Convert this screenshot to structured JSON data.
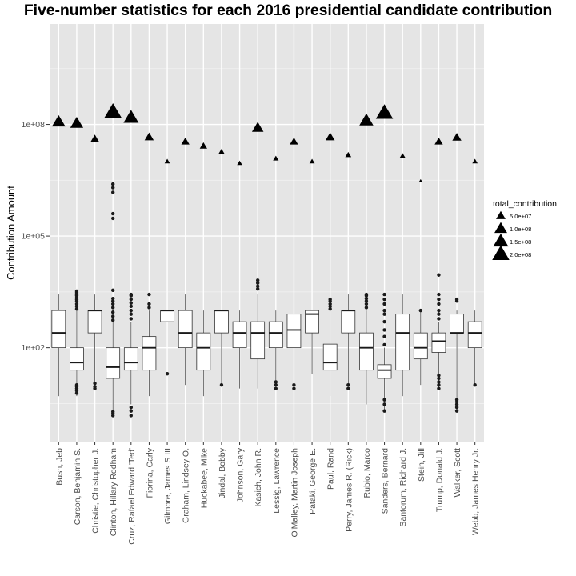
{
  "chart_data": {
    "type": "boxplot",
    "title": "Five-number statistics for each 2016 presidential candidate contribution",
    "xlabel": "",
    "ylabel": "Contribution Amount",
    "y_scale": "log10",
    "ylim": [
      0.3,
      50000000000
    ],
    "y_ticks": [
      {
        "value": 100,
        "label": "1e+02"
      },
      {
        "value": 100000,
        "label": "1e+05"
      },
      {
        "value": 100000000,
        "label": "1e+08"
      }
    ],
    "grid": true,
    "legend_position": "right",
    "legend": {
      "title": "total_contribution",
      "entries": [
        {
          "label": "5.0e+07",
          "value": 50000000
        },
        {
          "label": "1.0e+08",
          "value": 100000000
        },
        {
          "label": "1.5e+08",
          "value": 150000000
        },
        {
          "label": "2.0e+08",
          "value": 200000000
        }
      ]
    },
    "series": [
      {
        "name": "Bush, Jeb",
        "whisker_low": 5,
        "q1": 100,
        "median": 250,
        "q3": 1000,
        "whisker_high": 2700,
        "outliers_low": [],
        "outliers_high": [],
        "total_contribution": 115000000
      },
      {
        "name": "Carson, Benjamin S.",
        "whisker_low": 5,
        "q1": 25,
        "median": 40,
        "q3": 100,
        "whisker_high": 1000,
        "outliers_low": [
          6,
          7,
          8,
          9,
          10
        ],
        "outliers_high": [
          1100,
          1300,
          1500,
          1800,
          2000,
          2200,
          2500,
          2700,
          3000,
          3300
        ],
        "total_contribution": 105000000
      },
      {
        "name": "Christie, Christopher J.",
        "whisker_low": 10,
        "q1": 250,
        "median": 1000,
        "q3": 1000,
        "whisker_high": 2700,
        "outliers_low": [
          8,
          9,
          11
        ],
        "outliers_high": [],
        "total_contribution": 40000000
      },
      {
        "name": "Clinton, Hillary Rodham",
        "whisker_low": 2,
        "q1": 15,
        "median": 30,
        "q3": 100,
        "whisker_high": 500,
        "outliers_low": [
          1.5,
          1.7,
          1.9
        ],
        "outliers_high": [
          550,
          700,
          900,
          1200,
          1500,
          1800,
          2100,
          3500,
          300000,
          400000,
          1500000,
          2000000,
          2500000
        ],
        "total_contribution": 210000000
      },
      {
        "name": "Cruz, Rafael Edward 'Ted'",
        "whisker_low": 3,
        "q1": 25,
        "median": 40,
        "q3": 100,
        "whisker_high": 500,
        "outliers_low": [
          1.5,
          2,
          2.5
        ],
        "outliers_high": [
          600,
          800,
          1000,
          1300,
          1600,
          2000,
          2500,
          2700
        ],
        "total_contribution": 150000000
      },
      {
        "name": "Fiorina, Carly",
        "whisker_low": 5,
        "q1": 25,
        "median": 100,
        "q3": 200,
        "whisker_high": 1000,
        "outliers_low": [],
        "outliers_high": [
          1200,
          1500,
          2700
        ],
        "total_contribution": 45000000
      },
      {
        "name": "Gilmore, James S III",
        "whisker_low": 500,
        "q1": 500,
        "median": 1000,
        "q3": 1000,
        "whisker_high": 1000,
        "outliers_low": [
          20
        ],
        "outliers_high": [],
        "total_contribution": 10000000
      },
      {
        "name": "Graham, Lindsey O.",
        "whisker_low": 10,
        "q1": 100,
        "median": 250,
        "q3": 1000,
        "whisker_high": 2700,
        "outliers_low": [],
        "outliers_high": [],
        "total_contribution": 34000000
      },
      {
        "name": "Huckabee, Mike",
        "whisker_low": 5,
        "q1": 25,
        "median": 100,
        "q3": 250,
        "whisker_high": 1000,
        "outliers_low": [],
        "outliers_high": [],
        "total_contribution": 26000000
      },
      {
        "name": "Jindal, Bobby",
        "whisker_low": 10,
        "q1": 250,
        "median": 1000,
        "q3": 1000,
        "whisker_high": 1000,
        "outliers_low": [
          10
        ],
        "outliers_high": [],
        "total_contribution": 18000000
      },
      {
        "name": "Johnson, Gary",
        "whisker_low": 8,
        "q1": 100,
        "median": 250,
        "q3": 500,
        "whisker_high": 1000,
        "outliers_low": [],
        "outliers_high": [],
        "total_contribution": 9000000
      },
      {
        "name": "Kasich, John R.",
        "whisker_low": 8,
        "q1": 50,
        "median": 250,
        "q3": 500,
        "whisker_high": 2700,
        "outliers_low": [],
        "outliers_high": [
          3800,
          4500,
          5500,
          6500
        ],
        "total_contribution": 80000000
      },
      {
        "name": "Lessig, Lawrence",
        "whisker_low": 10,
        "q1": 100,
        "median": 250,
        "q3": 500,
        "whisker_high": 1000,
        "outliers_low": [
          8,
          10,
          12
        ],
        "outliers_high": [],
        "total_contribution": 12000000
      },
      {
        "name": "O'Malley, Martin Joseph",
        "whisker_low": 10,
        "q1": 100,
        "median": 300,
        "q3": 800,
        "whisker_high": 2700,
        "outliers_low": [
          8,
          10
        ],
        "outliers_high": [],
        "total_contribution": 34000000
      },
      {
        "name": "Pataki, George E.",
        "whisker_low": 20,
        "q1": 250,
        "median": 800,
        "q3": 1000,
        "whisker_high": 1000,
        "outliers_low": [],
        "outliers_high": [],
        "total_contribution": 10000000
      },
      {
        "name": "Paul, Rand",
        "whisker_low": 5,
        "q1": 25,
        "median": 40,
        "q3": 125,
        "whisker_high": 1000,
        "outliers_low": [],
        "outliers_high": [
          1100,
          1300,
          1500,
          1800,
          2000
        ],
        "total_contribution": 45000000
      },
      {
        "name": "Perry, James R. (Rick)",
        "whisker_low": 10,
        "q1": 250,
        "median": 1000,
        "q3": 1000,
        "whisker_high": 2700,
        "outliers_low": [
          8,
          10
        ],
        "outliers_high": [],
        "total_contribution": 15000000
      },
      {
        "name": "Rubio, Marco",
        "whisker_low": 3,
        "q1": 25,
        "median": 100,
        "q3": 250,
        "whisker_high": 1000,
        "outliers_low": [],
        "outliers_high": [
          1200,
          1500,
          1800,
          2100,
          2500,
          2700
        ],
        "total_contribution": 125000000
      },
      {
        "name": "Sanders, Bernard",
        "whisker_low": 2,
        "q1": 15,
        "median": 25,
        "q3": 35,
        "whisker_high": 100,
        "outliers_low": [
          2,
          3,
          4
        ],
        "outliers_high": [
          120,
          200,
          300,
          500,
          800,
          1000,
          1500,
          2000,
          2700
        ],
        "total_contribution": 200000000
      },
      {
        "name": "Santorum, Richard J.",
        "whisker_low": 5,
        "q1": 25,
        "median": 250,
        "q3": 800,
        "whisker_high": 2700,
        "outliers_low": [],
        "outliers_high": [],
        "total_contribution": 14000000
      },
      {
        "name": "Stein, Jill",
        "whisker_low": 10,
        "q1": 50,
        "median": 100,
        "q3": 250,
        "whisker_high": 1000,
        "outliers_low": [],
        "outliers_high": [
          1000
        ],
        "total_contribution": 3000000
      },
      {
        "name": "Trump, Donald J.",
        "whisker_low": 8,
        "q1": 75,
        "median": 150,
        "q3": 250,
        "whisker_high": 500,
        "outliers_low": [
          8,
          10,
          12,
          15,
          18
        ],
        "outliers_high": [
          600,
          800,
          1000,
          1500,
          2000,
          2700,
          9000
        ],
        "total_contribution": 34000000
      },
      {
        "name": "Walker, Scott",
        "whisker_low": 4,
        "q1": 250,
        "median": 250,
        "q3": 800,
        "whisker_high": 1000,
        "outliers_low": [
          2,
          2.5,
          3,
          3.5,
          4
        ],
        "outliers_high": [
          1800,
          2000
        ],
        "total_contribution": 44000000
      },
      {
        "name": "Webb, James Henry Jr.",
        "whisker_low": 10,
        "q1": 100,
        "median": 250,
        "q3": 500,
        "whisker_high": 1000,
        "outliers_low": [
          10
        ],
        "outliers_high": [],
        "total_contribution": 10000000
      }
    ]
  }
}
